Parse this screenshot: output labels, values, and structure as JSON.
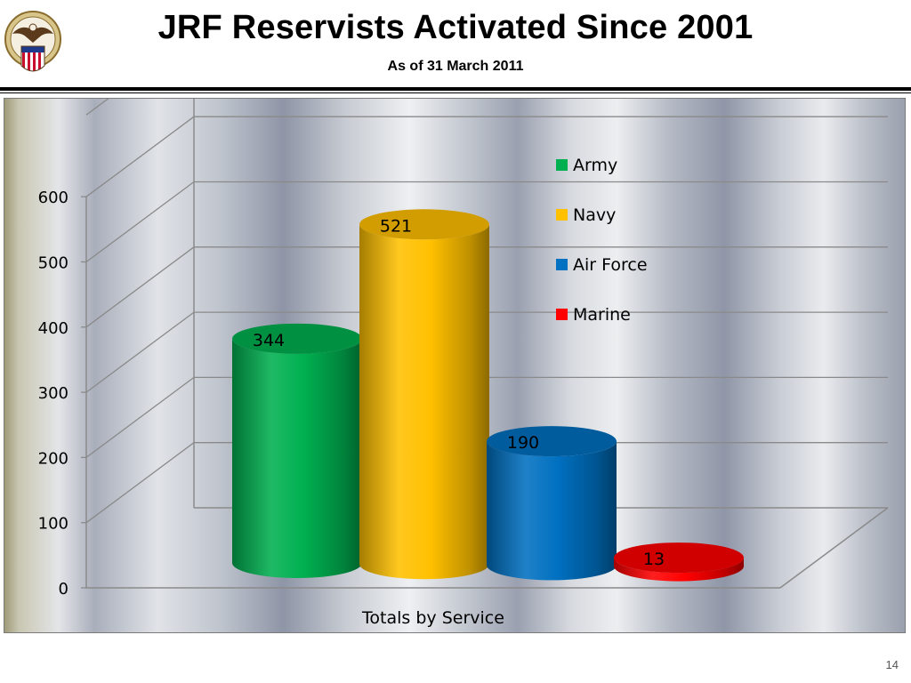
{
  "header": {
    "title": "JRF Reservists Activated Since 2001",
    "subtitle": "As of 31 March 2011"
  },
  "seal": {
    "icon": "department-seal-icon"
  },
  "slide_number": "14",
  "chart_data": {
    "type": "bar",
    "style": "3d-cylinder",
    "categories": [
      "Totals by Service"
    ],
    "xlabel": "Totals by Service",
    "ylabel": "",
    "ylim": [
      0,
      600
    ],
    "yticks": [
      "0",
      "100",
      "200",
      "300",
      "400",
      "500",
      "600"
    ],
    "grid": true,
    "legend_position": "right",
    "series": [
      {
        "name": "Army",
        "values": [
          344
        ],
        "label": "344",
        "color": "#00b050"
      },
      {
        "name": "Navy",
        "values": [
          521
        ],
        "label": "521",
        "color": "#ffc000"
      },
      {
        "name": "Air Force",
        "values": [
          190
        ],
        "label": "190",
        "color": "#0070c0"
      },
      {
        "name": "Marine",
        "values": [
          13
        ],
        "label": "13",
        "color": "#ff0000"
      }
    ]
  }
}
